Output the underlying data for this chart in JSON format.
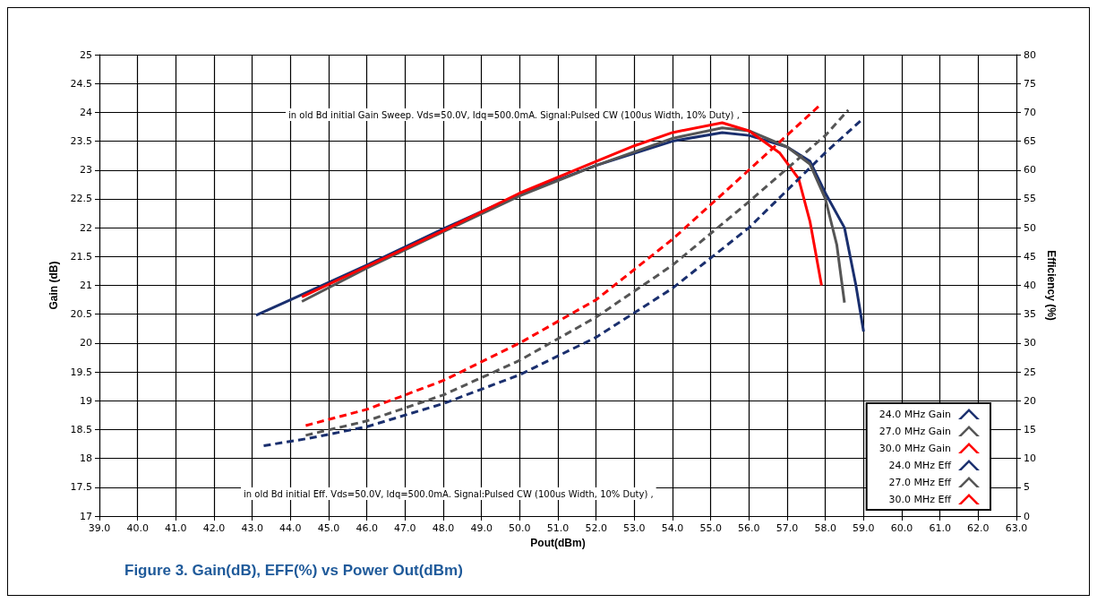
{
  "chart_data": {
    "type": "line",
    "title": "Figure 3. Gain(dB), EFF(%) vs Power Out(dBm)",
    "xlabel": "Pout(dBm)",
    "ylabel": "Gain (dB)",
    "y2label": "Efficiency (%)",
    "annotations": [
      "in old Bd initial Gain Sweep. Vds=50.0V, Idq=500.0mA. Signal:Pulsed CW (100us Width, 10% Duty) ,",
      "in old Bd initial Eff. Vds=50.0V, Idq=500.0mA. Signal:Pulsed CW (100us Width, 10% Duty) ,"
    ],
    "xlim": [
      39,
      63
    ],
    "xticks": [
      {
        "value": 39,
        "label": "39.0"
      },
      {
        "value": 40,
        "label": "40.0"
      },
      {
        "value": 41,
        "label": "41.0"
      },
      {
        "value": 42,
        "label": "42.0"
      },
      {
        "value": 43,
        "label": "43.0"
      },
      {
        "value": 44,
        "label": "44.0"
      },
      {
        "value": 45,
        "label": "45.0"
      },
      {
        "value": 46,
        "label": "46.0"
      },
      {
        "value": 47,
        "label": "47.0"
      },
      {
        "value": 48,
        "label": "48.0"
      },
      {
        "value": 49,
        "label": "49.0"
      },
      {
        "value": 50,
        "label": "50.0"
      },
      {
        "value": 51,
        "label": "51.0"
      },
      {
        "value": 52,
        "label": "52.0"
      },
      {
        "value": 53,
        "label": "53.0"
      },
      {
        "value": 54,
        "label": "54.0"
      },
      {
        "value": 55,
        "label": "55.0"
      },
      {
        "value": 56,
        "label": "56.0"
      },
      {
        "value": 57,
        "label": "57.0"
      },
      {
        "value": 58,
        "label": "58.0"
      },
      {
        "value": 59,
        "label": "59.0"
      },
      {
        "value": 60,
        "label": "60.0"
      },
      {
        "value": 61,
        "label": "61.0"
      },
      {
        "value": 62,
        "label": "62.0"
      },
      {
        "value": 63,
        "label": "63.0"
      }
    ],
    "ylim": [
      17,
      25
    ],
    "yticks": [
      17,
      17.5,
      18,
      18.5,
      19,
      19.5,
      20,
      20.5,
      21,
      21.5,
      22,
      22.5,
      23,
      23.5,
      24,
      24.5,
      25
    ],
    "y2lim": [
      0,
      80
    ],
    "y2ticks": [
      0,
      5,
      10,
      15,
      20,
      25,
      30,
      35,
      40,
      45,
      50,
      55,
      60,
      65,
      70,
      75,
      80
    ],
    "grid": true,
    "legend": "bottom right",
    "marker": "none",
    "series": [
      {
        "name": "24.0 MHz Gain",
        "color": "#1a2f6e",
        "line_style": "solid",
        "x": [
          43.1,
          44,
          46,
          48,
          50,
          52,
          54,
          55.3,
          56,
          57,
          57.6,
          58,
          58.5,
          58.8,
          59
        ],
        "values": [
          20.48,
          20.75,
          21.35,
          21.98,
          22.58,
          23.08,
          23.5,
          23.65,
          23.6,
          23.4,
          23.15,
          22.6,
          22,
          21,
          20.2
        ]
      },
      {
        "name": "27.0 MHz Gain",
        "color": "#555555",
        "line_style": "solid",
        "x": [
          44.3,
          46,
          48,
          50,
          52,
          54,
          55.3,
          56,
          57,
          57.6,
          58,
          58.3,
          58.5
        ],
        "values": [
          20.72,
          21.3,
          21.93,
          22.55,
          23.08,
          23.55,
          23.73,
          23.68,
          23.4,
          23.1,
          22.5,
          21.7,
          20.7
        ]
      },
      {
        "name": "30.0 MHz Gain",
        "color": "#ff0000",
        "line_style": "solid",
        "x": [
          44.3,
          46,
          48,
          50,
          52,
          53,
          54,
          55.3,
          56,
          56.8,
          57.3,
          57.6,
          57.9
        ],
        "values": [
          20.8,
          21.33,
          21.95,
          22.6,
          23.15,
          23.42,
          23.65,
          23.82,
          23.68,
          23.3,
          22.85,
          22.1,
          21
        ]
      },
      {
        "name": "24.0 MHz Eff",
        "color": "#1a2f6e",
        "line_style": "dashed",
        "axis": "y2",
        "x": [
          43.3,
          44.5,
          46,
          48,
          50,
          52,
          54,
          56,
          58,
          59
        ],
        "values": [
          12.2,
          13.5,
          15.5,
          19.5,
          24.5,
          31,
          39.5,
          50,
          63,
          69
        ]
      },
      {
        "name": "27.0 MHz Eff",
        "color": "#555555",
        "line_style": "dashed",
        "axis": "y2",
        "x": [
          44.4,
          46,
          48,
          50,
          52,
          54,
          56,
          58,
          58.6
        ],
        "values": [
          14,
          16.5,
          21,
          27,
          34.5,
          43.5,
          54.5,
          66,
          70.4
        ]
      },
      {
        "name": "30.0 MHz Eff",
        "color": "#ff0000",
        "line_style": "dashed",
        "axis": "y2",
        "x": [
          44.4,
          46,
          48,
          50,
          52,
          54,
          56,
          57.9
        ],
        "values": [
          15.7,
          18.5,
          23.5,
          30,
          37.5,
          48,
          60,
          71.5
        ]
      }
    ]
  }
}
